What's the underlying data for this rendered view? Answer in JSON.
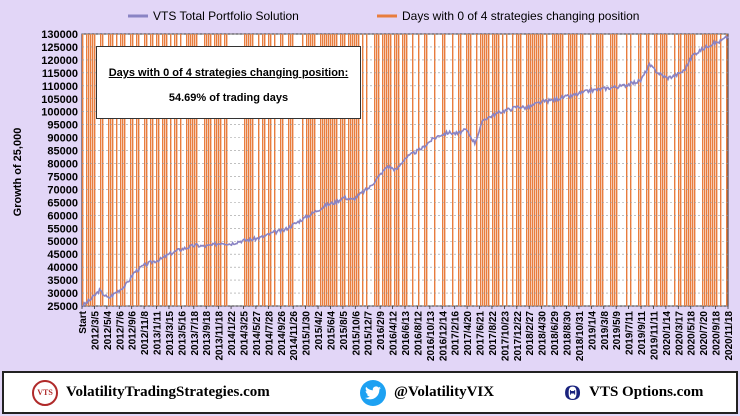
{
  "colors": {
    "background": "#e2d6f7",
    "plot_background": "#ffffff",
    "line": "#8a84c4",
    "bars": "#e87d3e",
    "grid": "#9a9a9a"
  },
  "note": {
    "title": "Days with 0 of 4 strategies changing position:",
    "value": "54.69% of trading days"
  },
  "footer": {
    "website": "VolatilityTradingStrategies.com",
    "twitter": "@VolatilityVIX",
    "options": "VTS Options.com",
    "logo_text": "VTS"
  },
  "chart_data": {
    "type": "line",
    "ylabel": "Growth of 25,000",
    "ylim": [
      25000,
      130000
    ],
    "yticks": [
      25000,
      30000,
      35000,
      40000,
      45000,
      50000,
      55000,
      60000,
      65000,
      70000,
      75000,
      80000,
      85000,
      90000,
      95000,
      100000,
      105000,
      110000,
      115000,
      120000,
      125000,
      130000
    ],
    "x_tick_labels": [
      "Start",
      "2012/3/5",
      "2012/5/4",
      "2012/7/6",
      "2012/9/6",
      "2012/11/8",
      "2013/1/11",
      "2013/3/15",
      "2013/5/16",
      "2013/7/18",
      "2013/9/18",
      "2013/11/18",
      "2014/1/22",
      "2014/3/25",
      "2014/5/27",
      "2014/7/28",
      "2014/9/26",
      "2014/11/26",
      "2015/1/30",
      "2015/4/2",
      "2015/6/4",
      "2015/8/5",
      "2015/10/6",
      "2015/12/7",
      "2016/2/9",
      "2016/4/12",
      "2016/6/13",
      "2016/8/12",
      "2016/10/13",
      "2016/12/14",
      "2017/2/16",
      "2017/4/20",
      "2017/6/21",
      "2017/8/22",
      "2017/10/23",
      "2017/12/22",
      "2018/2/27",
      "2018/4/30",
      "2018/6/29",
      "2018/8/30",
      "2018/10/31",
      "2019/1/4",
      "2019/3/8",
      "2019/5/9",
      "2019/7/11",
      "2019/9/11",
      "2019/11/11",
      "2020/1/14",
      "2020/3/17",
      "2020/5/18",
      "2020/7/20",
      "2020/9/18",
      "2020/11/18"
    ],
    "series": [
      {
        "name": "VTS Total Portfolio Solution",
        "kind": "line",
        "values": [
          25000,
          27500,
          31000,
          28000,
          30500,
          33000,
          38000,
          40500,
          42000,
          43000,
          45000,
          46500,
          47500,
          48500,
          48000,
          48500,
          49500,
          49000,
          50000,
          50500,
          51000,
          52000,
          53500,
          54000,
          56000,
          58000,
          60000,
          62000,
          64000,
          65000,
          67000,
          66000,
          68500,
          71000,
          75000,
          79000,
          77500,
          82000,
          84000,
          86000,
          89000,
          91000,
          92000,
          91500,
          93000,
          88000,
          97000,
          98500,
          100000,
          101000,
          102000,
          101500,
          103000,
          104000,
          104500,
          105500,
          106000,
          107000,
          108000,
          108500,
          109000,
          109500,
          110000,
          111000,
          112000,
          118000,
          115000,
          113000,
          114000,
          116000,
          122000,
          124000,
          126000,
          127000,
          129000
        ]
      },
      {
        "name": "Days with 0 of 4 strategies changing position",
        "kind": "bars",
        "share_of_days": 0.5469
      }
    ],
    "grid": true,
    "legend_position": "top"
  }
}
